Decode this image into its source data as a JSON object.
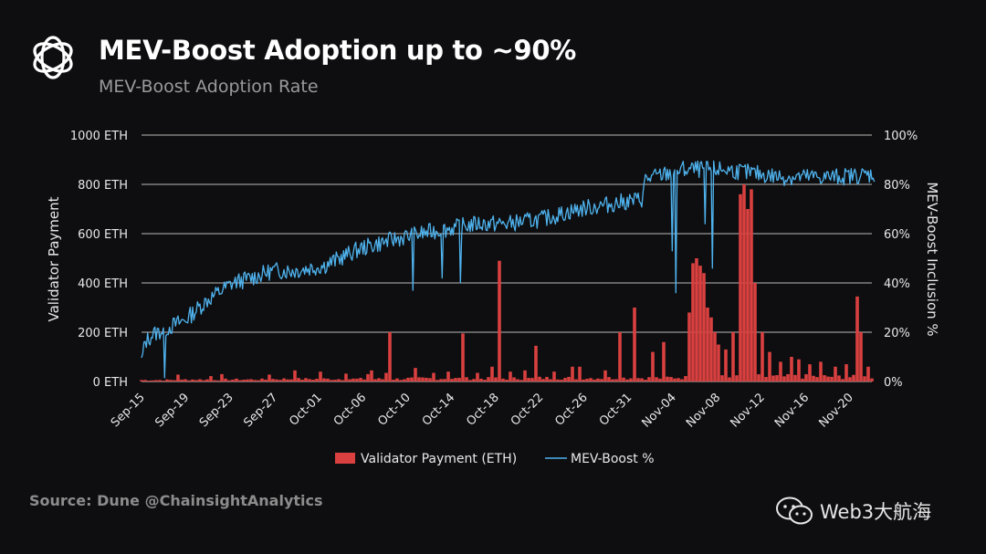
{
  "header": {
    "title": "MEV-Boost Adoption up to ~90%",
    "subtitle": "MEV-Boost Adoption Rate",
    "logo_icon": "aperture-logo-icon"
  },
  "footer": {
    "source": "Source: Dune @ChainsightAnalytics",
    "watermark": "Web3大航海",
    "watermark_icon": "wechat-icon"
  },
  "colors": {
    "payment": "#d9403f",
    "mev": "#4fb3ee",
    "grid": "#d8d8d8",
    "background": "#0e0e10"
  },
  "chart_data": {
    "type": "bar+line",
    "title": "MEV-Boost Adoption Rate",
    "ylabel": "Validator Payment",
    "y2label": "MEV-Boost Inclusion %",
    "ylim": [
      0,
      1000
    ],
    "y2lim": [
      0,
      100
    ],
    "yticks": [
      "0 ETH",
      "200 ETH",
      "400 ETH",
      "600 ETH",
      "800 ETH",
      "1000 ETH"
    ],
    "y2ticks": [
      "0%",
      "20%",
      "40%",
      "60%",
      "80%",
      "100%"
    ],
    "xticks": [
      "Sep-15",
      "Sep-19",
      "Sep-23",
      "Sep-27",
      "Oct-01",
      "Oct-06",
      "Oct-10",
      "Oct-14",
      "Oct-18",
      "Oct-22",
      "Oct-26",
      "Oct-31",
      "Nov-04",
      "Nov-08",
      "Nov-12",
      "Nov-16",
      "Nov-20"
    ],
    "grid": true,
    "legend_position": "bottom-center",
    "series": [
      {
        "name": "Validator Payment (ETH)",
        "type": "bar",
        "axis": "left",
        "baseline": [
          6,
          8,
          8,
          10,
          10,
          10,
          12,
          12,
          12,
          14,
          14,
          14,
          16,
          18,
          20,
          20,
          18,
          16
        ],
        "spikes": [
          [
            10,
            28
          ],
          [
            19,
            22
          ],
          [
            22,
            30
          ],
          [
            35,
            28
          ],
          [
            42,
            45
          ],
          [
            49,
            40
          ],
          [
            56,
            32
          ],
          [
            62,
            30
          ],
          [
            63,
            45
          ],
          [
            67,
            35
          ],
          [
            68,
            200
          ],
          [
            75,
            55
          ],
          [
            80,
            35
          ],
          [
            84,
            40
          ],
          [
            88,
            195
          ],
          [
            92,
            35
          ],
          [
            96,
            60
          ],
          [
            98,
            490
          ],
          [
            101,
            40
          ],
          [
            105,
            45
          ],
          [
            108,
            145
          ],
          [
            113,
            40
          ],
          [
            118,
            60
          ],
          [
            120,
            60
          ],
          [
            127,
            45
          ],
          [
            131,
            200
          ],
          [
            135,
            300
          ],
          [
            140,
            120
          ],
          [
            143,
            160
          ],
          [
            150,
            280
          ],
          [
            151,
            480
          ],
          [
            152,
            500
          ],
          [
            153,
            470
          ],
          [
            154,
            440
          ],
          [
            155,
            300
          ],
          [
            156,
            260
          ],
          [
            157,
            200
          ],
          [
            158,
            150
          ],
          [
            160,
            130
          ],
          [
            162,
            200
          ],
          [
            164,
            760
          ],
          [
            165,
            800
          ],
          [
            166,
            700
          ],
          [
            167,
            780
          ],
          [
            168,
            400
          ],
          [
            170,
            200
          ],
          [
            172,
            120
          ],
          [
            175,
            80
          ],
          [
            178,
            100
          ],
          [
            180,
            90
          ],
          [
            183,
            70
          ],
          [
            186,
            80
          ],
          [
            190,
            60
          ],
          [
            193,
            70
          ],
          [
            196,
            345
          ],
          [
            197,
            200
          ],
          [
            199,
            60
          ]
        ]
      },
      {
        "name": "MEV-Boost %",
        "type": "line",
        "axis": "right",
        "trend": [
          [
            0,
            8
          ],
          [
            1,
            16
          ],
          [
            3,
            19
          ],
          [
            12,
            25
          ],
          [
            18,
            33
          ],
          [
            25,
            40
          ],
          [
            30,
            42
          ],
          [
            36,
            45
          ],
          [
            42,
            45
          ],
          [
            50,
            47
          ],
          [
            60,
            54
          ],
          [
            70,
            58
          ],
          [
            80,
            61
          ],
          [
            92,
            64
          ],
          [
            100,
            64
          ],
          [
            110,
            66
          ],
          [
            120,
            70
          ],
          [
            137,
            74
          ],
          [
            138,
            82
          ],
          [
            148,
            86
          ],
          [
            160,
            86
          ],
          [
            175,
            83
          ],
          [
            190,
            83
          ],
          [
            200,
            84
          ]
        ],
        "dips": [
          [
            6,
            1.5
          ],
          [
            74,
            37
          ],
          [
            82,
            42
          ],
          [
            87,
            40
          ],
          [
            145,
            53
          ],
          [
            146,
            36
          ],
          [
            154,
            64
          ],
          [
            156,
            46
          ]
        ]
      }
    ]
  }
}
